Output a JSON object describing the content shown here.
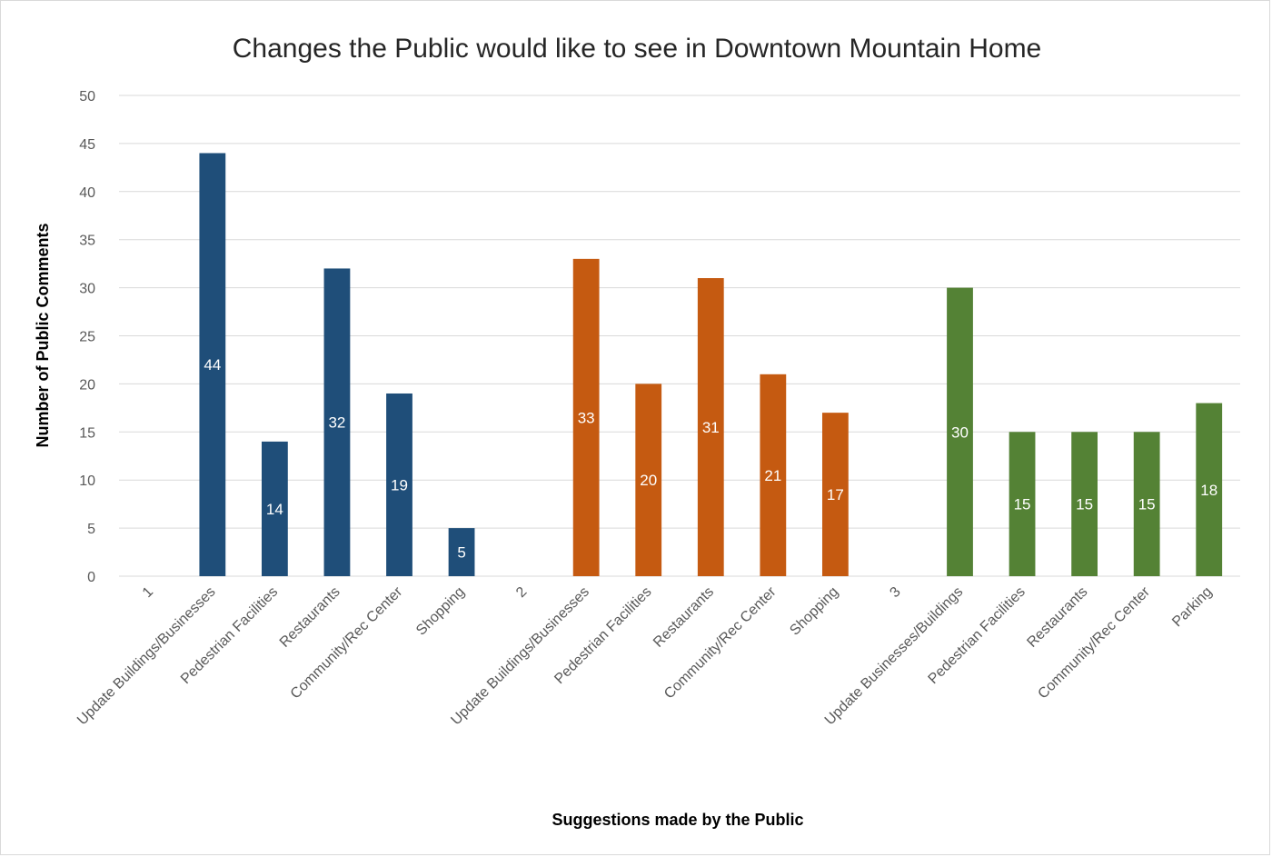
{
  "chart_data": {
    "type": "bar",
    "title": "Changes the Public would like to see in Downtown Mountain Home",
    "xlabel": "Suggestions made by the Public",
    "ylabel": "Number of Public Comments",
    "ylim": [
      0,
      50
    ],
    "ytick_step": 5,
    "grid": true,
    "legend": "none",
    "categories": [
      "1",
      "Update  Buildings/Businesses",
      "Pedestrian Facilities",
      "Restaurants",
      "Community/Rec Center",
      "Shopping",
      "2",
      "Update  Buildings/Businesses",
      "Pedestrian Facilities",
      "Restaurants",
      "Community/Rec Center",
      "Shopping",
      "3",
      "Update Businesses/Buildings",
      "Pedestrian Facilities",
      "Restaurants",
      "Community/Rec Center",
      "Parking"
    ],
    "values": [
      null,
      44,
      14,
      32,
      19,
      5,
      null,
      33,
      20,
      31,
      21,
      17,
      null,
      30,
      15,
      15,
      15,
      18
    ],
    "colors": [
      "#1f4e79",
      "#1f4e79",
      "#1f4e79",
      "#1f4e79",
      "#1f4e79",
      "#1f4e79",
      "#c55a11",
      "#c55a11",
      "#c55a11",
      "#c55a11",
      "#c55a11",
      "#c55a11",
      "#548235",
      "#548235",
      "#548235",
      "#548235",
      "#548235",
      "#548235"
    ]
  }
}
